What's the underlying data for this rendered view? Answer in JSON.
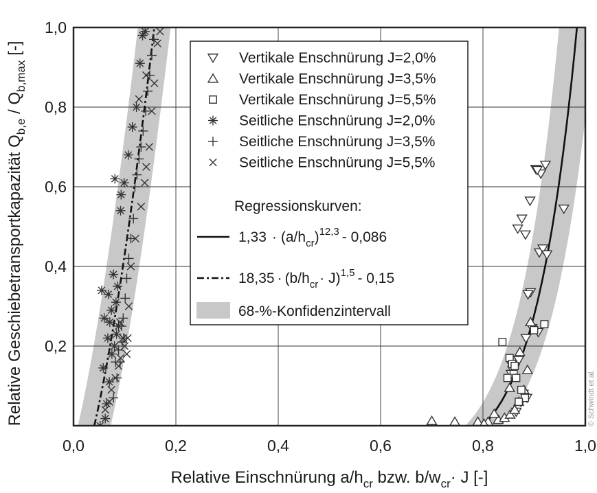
{
  "chart_data": {
    "type": "scatter",
    "xlabel": "Relative Einschnürung  a/hcr bzw. b/wcr · J [-]",
    "xlabel_parts": [
      "Relative Einschnürung  a/h",
      "cr",
      " bzw. b/w",
      "cr",
      "· J [-]"
    ],
    "ylabel": "Relative Geschiebetransportkapazität Qb,e / Qb,max [-]",
    "ylabel_parts": [
      "Relative Geschiebetransportkapazität Q",
      "b,e",
      " / Q",
      "b,max",
      " [-]"
    ],
    "xlim": [
      0,
      1
    ],
    "ylim": [
      0,
      1
    ],
    "x_ticks": [
      {
        "value": 0,
        "label": "0,0"
      },
      {
        "value": 0.2,
        "label": "0,2"
      },
      {
        "value": 0.4,
        "label": "0,4"
      },
      {
        "value": 0.6,
        "label": "0,6"
      },
      {
        "value": 0.8,
        "label": "0,8"
      },
      {
        "value": 1.0,
        "label": "1,0"
      }
    ],
    "y_ticks": [
      {
        "value": 0.2,
        "label": "0,2"
      },
      {
        "value": 0.4,
        "label": "0,4"
      },
      {
        "value": 0.6,
        "label": "0,6"
      },
      {
        "value": 0.8,
        "label": "0,8"
      },
      {
        "value": 1.0,
        "label": "1,0"
      }
    ],
    "grid": true,
    "legend_position": "top-center",
    "colors": {
      "series": "#333333",
      "band": "#c8c8c8",
      "grid": "#333333"
    },
    "legend": {
      "entries": [
        {
          "marker": "triangle-down",
          "label": "Vertikale Enschnürung J=2,0%"
        },
        {
          "marker": "triangle-up",
          "label": "Vertikale Enschnürung J=3,5%"
        },
        {
          "marker": "square",
          "label": "Vertikale Enschnürung J=5,5%"
        },
        {
          "marker": "asterisk",
          "label": "Seitliche Enschnürung J=2,0%"
        },
        {
          "marker": "plus",
          "label": "Seitliche Enschnürung J=3,5%"
        },
        {
          "marker": "cross",
          "label": "Seitliche Enschnürung J=5,5%"
        }
      ],
      "regression_heading": "Regressionskurven:",
      "regression": [
        {
          "style": "solid",
          "coef": "1,33",
          "dot": "·",
          "open": "(a/h",
          "sub": "cr",
          "close": ")",
          "exp": "12,3",
          "tail": "- 0,086"
        },
        {
          "style": "dashdot",
          "coef": "18,35",
          "dot": "·",
          "open": "(b/h",
          "sub": "cr",
          "close": "· J)",
          "exp": "1,5",
          "tail": "- 0,15"
        }
      ],
      "band_label": "68-%-Konfidenzintervall"
    },
    "regression_curves": [
      {
        "style": "solid",
        "formula": "1,33 · (a/hcr)^12,3 - 0,086",
        "coef": 1.33,
        "exponent": 12.3,
        "offset": -0.086,
        "band_halfwidth_x": 0.035
      },
      {
        "style": "dashdot",
        "formula": "18,35 · (b/hcr · J)^1,5 - 0,15",
        "coef": 18.35,
        "exponent": 1.5,
        "offset": -0.15,
        "band_halfwidth_x": 0.032
      }
    ],
    "series": [
      {
        "name": "Vertikale Enschnürung J=2,0%",
        "marker": "triangle-down",
        "x": [
          0.903,
          0.913,
          0.922,
          0.892,
          0.876,
          0.906,
          0.91,
          0.868,
          0.883,
          0.958,
          0.917,
          0.925,
          0.893,
          0.888,
          0.908,
          0.896,
          0.884,
          0.87,
          0.857,
          0.858,
          0.855,
          0.879,
          0.886,
          0.874,
          0.865
        ],
        "y": [
          0.645,
          0.633,
          0.655,
          0.565,
          0.52,
          0.642,
          0.435,
          0.495,
          0.48,
          0.545,
          0.445,
          0.43,
          0.335,
          0.33,
          0.235,
          0.245,
          0.22,
          0.165,
          0.15,
          0.14,
          0.13,
          0.08,
          0.07,
          0.06,
          0.035
        ]
      },
      {
        "name": "Vertikale Enschnürung J=3,5%",
        "marker": "triangle-up",
        "x": [
          0.7,
          0.745,
          0.79,
          0.81,
          0.83,
          0.842,
          0.853,
          0.862,
          0.87,
          0.88,
          0.887,
          0.893,
          0.852,
          0.872,
          0.822,
          0.802
        ],
        "y": [
          0.012,
          0.01,
          0.01,
          0.01,
          0.015,
          0.02,
          0.028,
          0.04,
          0.06,
          0.09,
          0.14,
          0.26,
          0.095,
          0.185,
          0.03,
          0.005
        ]
      },
      {
        "name": "Vertikale Enschnürung J=5,5%",
        "marker": "square",
        "x": [
          0.838,
          0.92,
          0.852,
          0.857,
          0.86,
          0.865,
          0.875,
          0.882,
          0.9,
          0.87,
          0.862,
          0.848
        ],
        "y": [
          0.21,
          0.255,
          0.17,
          0.155,
          0.13,
          0.12,
          0.09,
          0.07,
          0.24,
          0.06,
          0.15,
          0.12
        ]
      },
      {
        "name": "Seitliche Enschnürung J=2,0%",
        "marker": "asterisk",
        "x": [
          0.052,
          0.062,
          0.065,
          0.07,
          0.058,
          0.075,
          0.08,
          0.084,
          0.088,
          0.06,
          0.074,
          0.068,
          0.086,
          0.078,
          0.092,
          0.093,
          0.081,
          0.099,
          0.107,
          0.115,
          0.123,
          0.13,
          0.135,
          0.14,
          0.067,
          0.071,
          0.055,
          0.083
        ],
        "y": [
          0.0,
          0.018,
          0.055,
          0.11,
          0.145,
          0.18,
          0.2,
          0.23,
          0.25,
          0.27,
          0.29,
          0.33,
          0.35,
          0.38,
          0.54,
          0.58,
          0.62,
          0.61,
          0.68,
          0.75,
          0.8,
          0.91,
          0.98,
          0.99,
          0.22,
          0.26,
          0.34,
          0.31
        ]
      },
      {
        "name": "Seitliche Enschnürung J=3,5%",
        "marker": "plus",
        "x": [
          0.078,
          0.085,
          0.091,
          0.095,
          0.097,
          0.101,
          0.104,
          0.108,
          0.112,
          0.117,
          0.12,
          0.124,
          0.128,
          0.132,
          0.136,
          0.141,
          0.145,
          0.149,
          0.153,
          0.157,
          0.098,
          0.094,
          0.088,
          0.082
        ],
        "y": [
          0.07,
          0.12,
          0.16,
          0.21,
          0.27,
          0.32,
          0.37,
          0.42,
          0.47,
          0.52,
          0.6,
          0.63,
          0.67,
          0.7,
          0.74,
          0.79,
          0.84,
          0.88,
          0.93,
          0.97,
          0.22,
          0.25,
          0.19,
          0.16
        ]
      },
      {
        "name": "Seitliche Enschnürung J=5,5%",
        "marker": "cross",
        "x": [
          0.062,
          0.07,
          0.074,
          0.082,
          0.088,
          0.092,
          0.1,
          0.106,
          0.112,
          0.121,
          0.132,
          0.139,
          0.142,
          0.148,
          0.153,
          0.158,
          0.164,
          0.169,
          0.142,
          0.128,
          0.108,
          0.091,
          0.097,
          0.104
        ],
        "y": [
          0.04,
          0.06,
          0.09,
          0.12,
          0.15,
          0.17,
          0.2,
          0.22,
          0.4,
          0.47,
          0.55,
          0.61,
          0.65,
          0.7,
          0.79,
          0.86,
          0.96,
          0.99,
          0.88,
          0.82,
          0.3,
          0.26,
          0.22,
          0.18
        ]
      }
    ],
    "copyright": "© Schwindt et al."
  }
}
